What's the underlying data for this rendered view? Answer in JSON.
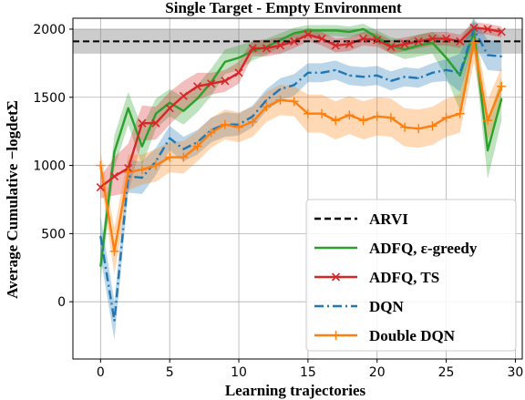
{
  "chart_data": {
    "type": "line",
    "title": "Single Target - Empty Environment",
    "xlabel": "Learning trajectories",
    "ylabel": "Average Cumulative −logdetΣ",
    "xlim": [
      -2,
      30.5
    ],
    "ylim": [
      -420,
      2080
    ],
    "xticks": [
      0,
      5,
      10,
      15,
      20,
      25,
      30
    ],
    "yticks": [
      0,
      500,
      1000,
      1500,
      2000
    ],
    "grid": true,
    "legend_position": "lower-right",
    "reference": {
      "name": "ARVI",
      "value": 1910,
      "band": [
        1820,
        2000
      ],
      "color": "#000000"
    },
    "x": [
      0,
      1,
      2,
      3,
      4,
      5,
      6,
      7,
      8,
      9,
      10,
      11,
      12,
      13,
      14,
      15,
      16,
      17,
      18,
      19,
      20,
      21,
      22,
      23,
      24,
      25,
      26,
      27,
      28,
      29
    ],
    "series": [
      {
        "name": "ADFQ, ε-greedy",
        "color": "#2ca02c",
        "style": "solid",
        "marker": "none",
        "values": [
          260,
          1100,
          1420,
          1140,
          1380,
          1460,
          1400,
          1490,
          1610,
          1760,
          1790,
          1840,
          1870,
          1920,
          1970,
          1990,
          1990,
          1990,
          1980,
          2000,
          1940,
          1880,
          1850,
          1880,
          1900,
          1790,
          1660,
          1980,
          1110,
          1490
        ],
        "band": [
          [
            150,
            370
          ],
          [
            980,
            1220
          ],
          [
            1300,
            1540
          ],
          [
            1000,
            1280
          ],
          [
            1270,
            1490
          ],
          [
            1360,
            1560
          ],
          [
            1300,
            1500
          ],
          [
            1390,
            1590
          ],
          [
            1510,
            1710
          ],
          [
            1670,
            1850
          ],
          [
            1700,
            1880
          ],
          [
            1770,
            1910
          ],
          [
            1810,
            1930
          ],
          [
            1870,
            1970
          ],
          [
            1930,
            2010
          ],
          [
            1950,
            2030
          ],
          [
            1950,
            2030
          ],
          [
            1950,
            2030
          ],
          [
            1940,
            2020
          ],
          [
            1960,
            2040
          ],
          [
            1890,
            1990
          ],
          [
            1820,
            1940
          ],
          [
            1780,
            1920
          ],
          [
            1800,
            1960
          ],
          [
            1820,
            1980
          ],
          [
            1650,
            1930
          ],
          [
            1400,
            1920
          ],
          [
            1860,
            2080
          ],
          [
            900,
            1320
          ],
          [
            1330,
            1650
          ]
        ]
      },
      {
        "name": "ADFQ, TS",
        "color": "#d62728",
        "style": "solid",
        "marker": "x",
        "values": [
          840,
          920,
          980,
          1310,
          1310,
          1420,
          1510,
          1580,
          1600,
          1620,
          1680,
          1860,
          1860,
          1880,
          1910,
          1960,
          1930,
          1880,
          1890,
          1930,
          1920,
          1870,
          1890,
          1910,
          1930,
          1930,
          1910,
          2010,
          2000,
          1980
        ],
        "band": [
          [
            760,
            920
          ],
          [
            780,
            1060
          ],
          [
            800,
            1160
          ],
          [
            1180,
            1440
          ],
          [
            1190,
            1430
          ],
          [
            1300,
            1540
          ],
          [
            1400,
            1620
          ],
          [
            1480,
            1680
          ],
          [
            1520,
            1680
          ],
          [
            1540,
            1700
          ],
          [
            1600,
            1760
          ],
          [
            1800,
            1920
          ],
          [
            1800,
            1920
          ],
          [
            1820,
            1940
          ],
          [
            1860,
            1960
          ],
          [
            1910,
            2010
          ],
          [
            1880,
            1980
          ],
          [
            1830,
            1930
          ],
          [
            1840,
            1940
          ],
          [
            1880,
            1980
          ],
          [
            1870,
            1970
          ],
          [
            1820,
            1920
          ],
          [
            1840,
            1940
          ],
          [
            1860,
            1960
          ],
          [
            1880,
            1980
          ],
          [
            1880,
            1980
          ],
          [
            1860,
            1960
          ],
          [
            1970,
            2050
          ],
          [
            1960,
            2040
          ],
          [
            1940,
            2020
          ]
        ]
      },
      {
        "name": "DQN",
        "color": "#1f77b4",
        "style": "dashdot",
        "marker": "none",
        "values": [
          480,
          -140,
          920,
          910,
          1030,
          1200,
          1120,
          1170,
          1260,
          1300,
          1300,
          1360,
          1480,
          1560,
          1590,
          1680,
          1680,
          1700,
          1660,
          1650,
          1660,
          1620,
          1650,
          1640,
          1680,
          1700,
          1680,
          2000,
          1810,
          1800
        ],
        "band": [
          [
            330,
            630
          ],
          [
            -280,
            0
          ],
          [
            800,
            1040
          ],
          [
            790,
            1030
          ],
          [
            930,
            1130
          ],
          [
            1110,
            1290
          ],
          [
            1030,
            1210
          ],
          [
            1080,
            1260
          ],
          [
            1170,
            1350
          ],
          [
            1210,
            1390
          ],
          [
            1220,
            1380
          ],
          [
            1280,
            1440
          ],
          [
            1400,
            1560
          ],
          [
            1480,
            1640
          ],
          [
            1510,
            1670
          ],
          [
            1610,
            1750
          ],
          [
            1610,
            1750
          ],
          [
            1630,
            1770
          ],
          [
            1590,
            1730
          ],
          [
            1580,
            1720
          ],
          [
            1590,
            1730
          ],
          [
            1550,
            1690
          ],
          [
            1580,
            1720
          ],
          [
            1570,
            1710
          ],
          [
            1610,
            1750
          ],
          [
            1620,
            1780
          ],
          [
            1540,
            1820
          ],
          [
            1900,
            2080
          ],
          [
            1700,
            1920
          ],
          [
            1690,
            1910
          ]
        ]
      },
      {
        "name": "Double DQN",
        "color": "#ff7f0e",
        "style": "solid",
        "marker": "+",
        "values": [
          1000,
          370,
          950,
          970,
          1000,
          1060,
          1060,
          1140,
          1240,
          1300,
          1280,
          1320,
          1430,
          1480,
          1470,
          1380,
          1380,
          1330,
          1370,
          1330,
          1360,
          1350,
          1280,
          1270,
          1290,
          1350,
          1380,
          1900,
          1330,
          1580
        ],
        "band": [
          [
            900,
            1100
          ],
          [
            200,
            540
          ],
          [
            820,
            1080
          ],
          [
            860,
            1080
          ],
          [
            880,
            1120
          ],
          [
            950,
            1170
          ],
          [
            940,
            1180
          ],
          [
            1030,
            1250
          ],
          [
            1130,
            1350
          ],
          [
            1190,
            1410
          ],
          [
            1170,
            1390
          ],
          [
            1210,
            1430
          ],
          [
            1320,
            1540
          ],
          [
            1370,
            1590
          ],
          [
            1360,
            1580
          ],
          [
            1240,
            1520
          ],
          [
            1240,
            1520
          ],
          [
            1190,
            1470
          ],
          [
            1230,
            1510
          ],
          [
            1190,
            1470
          ],
          [
            1220,
            1500
          ],
          [
            1210,
            1490
          ],
          [
            1140,
            1420
          ],
          [
            1130,
            1410
          ],
          [
            1150,
            1430
          ],
          [
            1210,
            1490
          ],
          [
            1240,
            1520
          ],
          [
            1760,
            2040
          ],
          [
            1180,
            1480
          ],
          [
            1440,
            1720
          ]
        ]
      }
    ]
  }
}
